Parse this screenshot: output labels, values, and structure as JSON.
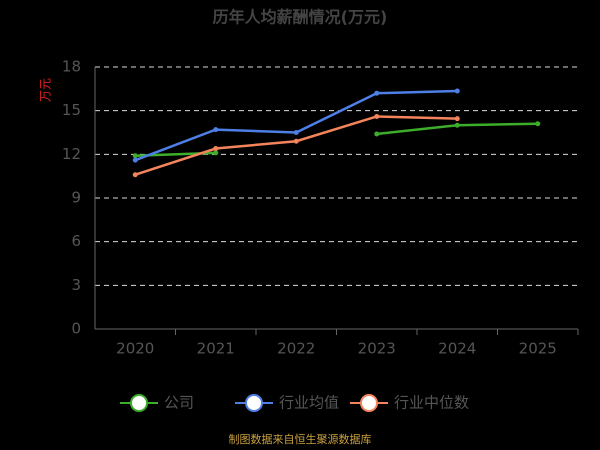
{
  "chart_data": {
    "type": "line",
    "title": "历年人均薪酬情况(万元)",
    "y_label": "万元",
    "categories": [
      "2020",
      "2021",
      "2022",
      "2023",
      "2024",
      "2025"
    ],
    "series": [
      {
        "name": "公司",
        "color": "#3dae2b",
        "values": [
          11.9,
          12.1,
          null,
          13.4,
          14.0,
          14.1
        ]
      },
      {
        "name": "行业均值",
        "color": "#4e7fe6",
        "values": [
          11.6,
          13.7,
          13.5,
          16.2,
          16.35,
          null
        ]
      },
      {
        "name": "行业中位数",
        "color": "#f4845c",
        "values": [
          10.6,
          12.4,
          12.9,
          14.6,
          14.45,
          null
        ]
      }
    ],
    "ylim": [
      0,
      18
    ],
    "yticks": [
      0,
      3,
      6,
      9,
      12,
      15,
      18
    ],
    "grid": true,
    "source": "制图数据来自恒生聚源数据库"
  }
}
